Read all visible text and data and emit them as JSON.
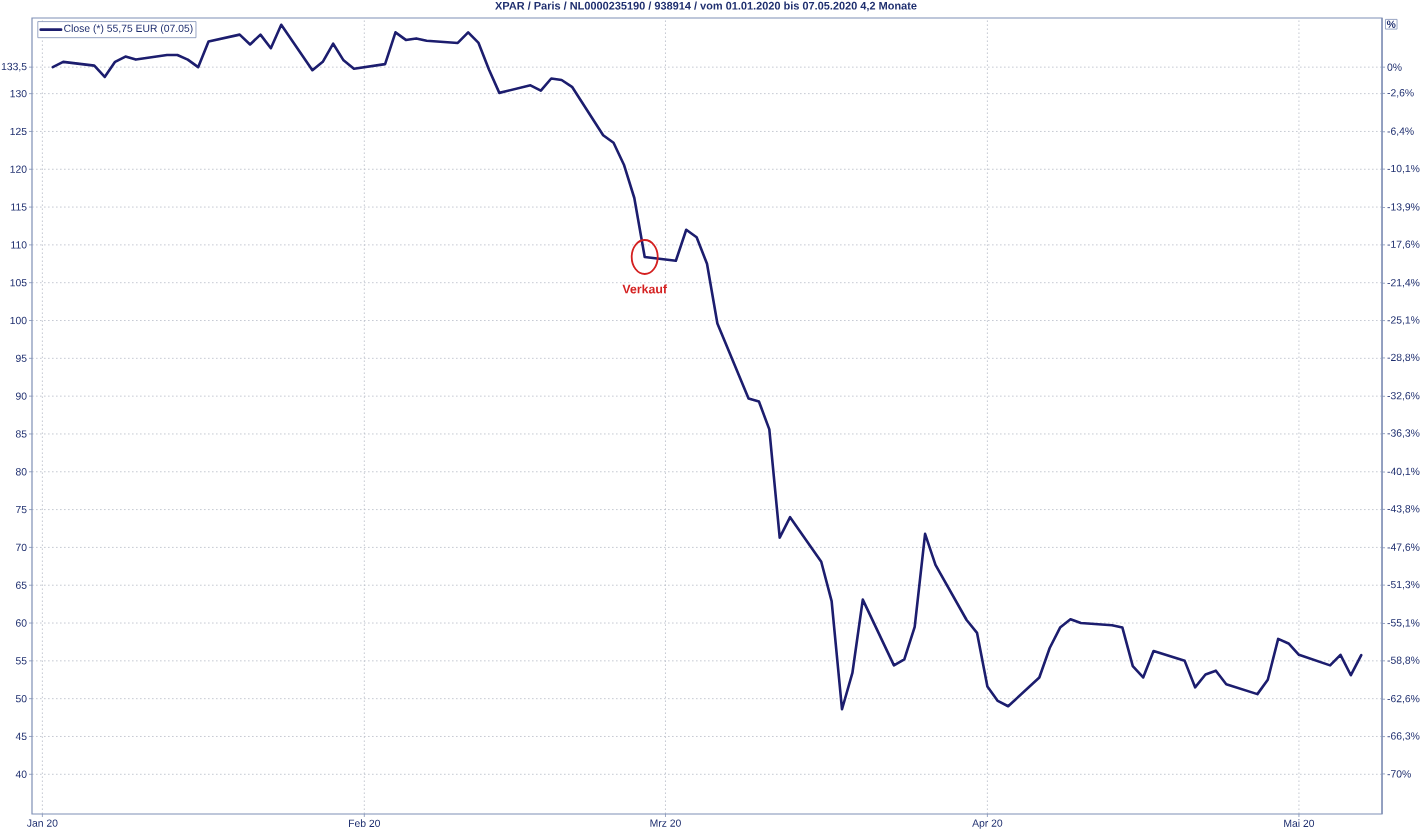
{
  "chart_data": {
    "type": "line",
    "title": "XPAR / Paris / NL0000235190 / 938914 / vom 01.01.2020 bis 07.05.2020 4,2 Monate",
    "y2label": "%",
    "x": [
      "2020-01-02",
      "2020-01-03",
      "2020-01-06",
      "2020-01-07",
      "2020-01-08",
      "2020-01-09",
      "2020-01-10",
      "2020-01-13",
      "2020-01-14",
      "2020-01-15",
      "2020-01-16",
      "2020-01-17",
      "2020-01-20",
      "2020-01-21",
      "2020-01-22",
      "2020-01-23",
      "2020-01-24",
      "2020-01-27",
      "2020-01-28",
      "2020-01-29",
      "2020-01-30",
      "2020-01-31",
      "2020-02-03",
      "2020-02-04",
      "2020-02-05",
      "2020-02-06",
      "2020-02-07",
      "2020-02-10",
      "2020-02-11",
      "2020-02-12",
      "2020-02-13",
      "2020-02-14",
      "2020-02-17",
      "2020-02-18",
      "2020-02-19",
      "2020-02-20",
      "2020-02-21",
      "2020-02-24",
      "2020-02-25",
      "2020-02-26",
      "2020-02-27",
      "2020-02-28",
      "2020-03-02",
      "2020-03-03",
      "2020-03-04",
      "2020-03-05",
      "2020-03-06",
      "2020-03-09",
      "2020-03-10",
      "2020-03-11",
      "2020-03-12",
      "2020-03-13",
      "2020-03-16",
      "2020-03-17",
      "2020-03-18",
      "2020-03-19",
      "2020-03-20",
      "2020-03-23",
      "2020-03-24",
      "2020-03-25",
      "2020-03-26",
      "2020-03-27",
      "2020-03-30",
      "2020-03-31",
      "2020-04-01",
      "2020-04-02",
      "2020-04-03",
      "2020-04-06",
      "2020-04-07",
      "2020-04-08",
      "2020-04-09",
      "2020-04-10",
      "2020-04-13",
      "2020-04-14",
      "2020-04-15",
      "2020-04-16",
      "2020-04-17",
      "2020-04-20",
      "2020-04-21",
      "2020-04-22",
      "2020-04-23",
      "2020-04-24",
      "2020-04-27",
      "2020-04-28",
      "2020-04-29",
      "2020-04-30",
      "2020-05-01",
      "2020-05-04",
      "2020-05-05",
      "2020-05-06",
      "2020-05-07"
    ],
    "series": [
      {
        "name": "Close (*) 55,75 EUR (07.05)",
        "color": "#1c1d6e",
        "values": [
          133.5,
          134.2,
          133.7,
          132.2,
          134.2,
          134.9,
          134.5,
          135.1,
          135.1,
          134.5,
          133.5,
          136.9,
          137.8,
          136.5,
          137.8,
          136.0,
          139.1,
          133.1,
          134.2,
          136.6,
          134.4,
          133.3,
          133.9,
          138.1,
          137.1,
          137.3,
          137.0,
          136.7,
          138.1,
          136.7,
          133.2,
          130.1,
          131.1,
          130.4,
          132.0,
          131.8,
          130.9,
          124.5,
          123.5,
          120.6,
          116.2,
          108.4,
          107.9,
          112.0,
          111.0,
          107.5,
          99.6,
          89.7,
          89.3,
          85.6,
          71.3,
          74.0,
          68.1,
          62.9,
          48.6,
          53.4,
          63.1,
          54.4,
          55.2,
          59.5,
          71.8,
          67.7,
          60.4,
          58.7,
          51.6,
          49.7,
          49.0,
          52.8,
          56.7,
          59.4,
          60.5,
          60.0,
          59.7,
          59.4,
          54.3,
          52.8,
          56.3,
          55.0,
          51.5,
          53.2,
          53.7,
          51.9,
          50.6,
          52.5,
          57.9,
          57.3,
          55.8,
          54.4,
          55.8,
          53.1,
          55.75
        ]
      }
    ],
    "xlim": [
      "2019-12-31",
      "2020-05-09"
    ],
    "xticks": [
      {
        "value": "2020-01-01",
        "label": "Jan 20"
      },
      {
        "value": "2020-02-01",
        "label": "Feb 20"
      },
      {
        "value": "2020-03-01",
        "label": "Mrz 20"
      },
      {
        "value": "2020-04-01",
        "label": "Apr 20"
      },
      {
        "value": "2020-05-01",
        "label": "Mai 20"
      }
    ],
    "ylim": [
      34.75,
      140
    ],
    "yticks": [
      40,
      45,
      50,
      55,
      60,
      65,
      70,
      75,
      80,
      85,
      90,
      95,
      100,
      105,
      110,
      115,
      120,
      125,
      130,
      {
        "value": 133.5,
        "label": "133,5"
      }
    ],
    "y2lim": [
      -73.97,
      4.87
    ],
    "y2ticks": [
      {
        "value": 0,
        "label": "0%"
      },
      {
        "value": -2.6,
        "label": "-2,6%"
      },
      {
        "value": -6.4,
        "label": "-6,4%"
      },
      {
        "value": -10.1,
        "label": "-10,1%"
      },
      {
        "value": -13.9,
        "label": "-13,9%"
      },
      {
        "value": -17.6,
        "label": "-17,6%"
      },
      {
        "value": -21.4,
        "label": "-21,4%"
      },
      {
        "value": -25.1,
        "label": "-25,1%"
      },
      {
        "value": -28.8,
        "label": "-28,8%"
      },
      {
        "value": -32.6,
        "label": "-32,6%"
      },
      {
        "value": -36.3,
        "label": "-36,3%"
      },
      {
        "value": -40.1,
        "label": "-40,1%"
      },
      {
        "value": -43.8,
        "label": "-43,8%"
      },
      {
        "value": -47.6,
        "label": "-47,6%"
      },
      {
        "value": -51.3,
        "label": "-51,3%"
      },
      {
        "value": -55.1,
        "label": "-55,1%"
      },
      {
        "value": -58.8,
        "label": "-58,8%"
      },
      {
        "value": -62.6,
        "label": "-62,6%"
      },
      {
        "value": -66.3,
        "label": "-66,3%"
      },
      {
        "value": -70,
        "label": "-70%"
      }
    ],
    "annotations": [
      {
        "text": "Verkauf",
        "x": "2020-02-28",
        "y": 108.4
      }
    ],
    "grid": true,
    "legend": "top left"
  }
}
